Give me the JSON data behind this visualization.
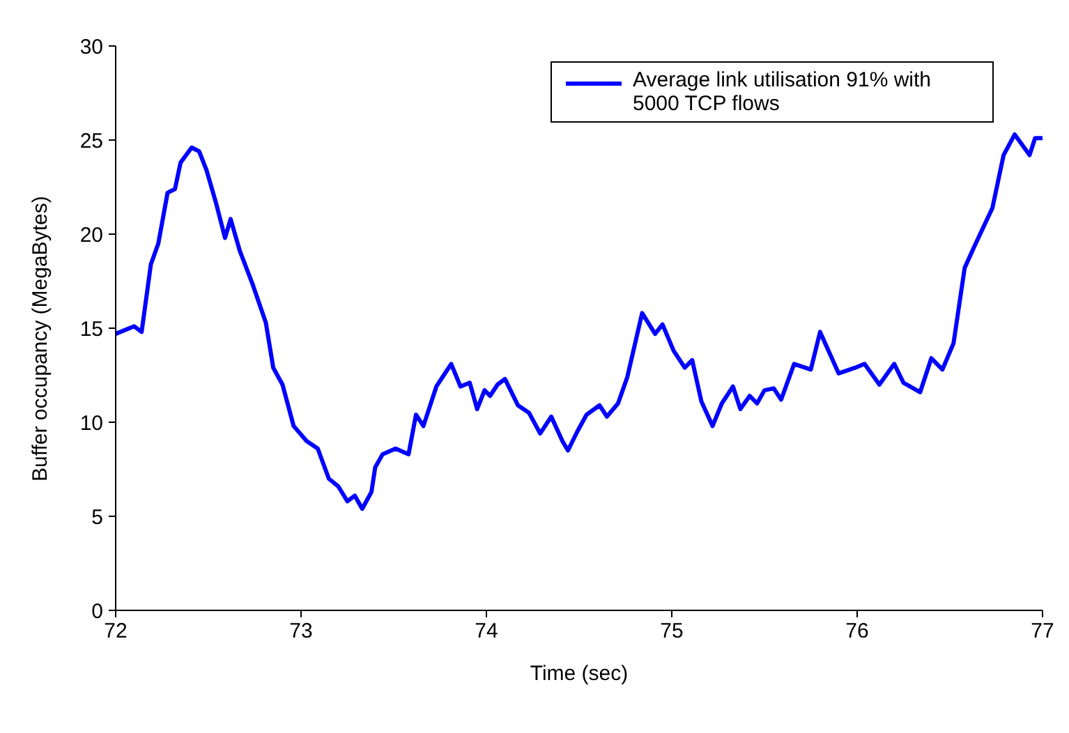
{
  "chart_data": {
    "type": "line",
    "xlabel": "Time (sec)",
    "ylabel": "Buffer occupancy (MegaBytes)",
    "xlim": [
      72,
      77
    ],
    "xticks": [
      72,
      73,
      74,
      75,
      76,
      77
    ],
    "ylim": [
      0,
      30
    ],
    "yticks": [
      0,
      5,
      10,
      15,
      20,
      25,
      30
    ],
    "grid": false,
    "legend": "top right",
    "marker": "none",
    "line_style": "solid",
    "x": [
      72.0,
      72.1,
      72.14,
      72.19,
      72.23,
      72.28,
      72.32,
      72.35,
      72.41,
      72.45,
      72.49,
      72.54,
      72.59,
      72.62,
      72.67,
      72.74,
      72.81,
      72.85,
      72.9,
      72.96,
      73.03,
      73.09,
      73.15,
      73.2,
      73.25,
      73.29,
      73.33,
      73.38,
      73.4,
      73.44,
      73.51,
      73.58,
      73.62,
      73.66,
      73.73,
      73.77,
      73.81,
      73.86,
      73.91,
      73.95,
      73.99,
      74.02,
      74.06,
      74.1,
      74.17,
      74.23,
      74.29,
      74.35,
      74.41,
      74.44,
      74.49,
      74.54,
      74.61,
      74.65,
      74.71,
      74.76,
      74.84,
      74.91,
      74.95,
      75.01,
      75.07,
      75.11,
      75.16,
      75.22,
      75.27,
      75.33,
      75.37,
      75.42,
      75.46,
      75.5,
      75.55,
      75.59,
      75.66,
      75.75,
      75.8,
      75.9,
      75.99,
      76.04,
      76.12,
      76.2,
      76.25,
      76.34,
      76.4,
      76.46,
      76.52,
      76.58,
      76.63,
      76.73,
      76.79,
      76.85,
      76.93,
      76.96,
      77.0
    ],
    "series": [
      {
        "name": "Average link utilisation 91% with 5000 TCP flows",
        "color": "#0000ff",
        "values": [
          14.7,
          15.1,
          14.8,
          18.4,
          19.5,
          22.2,
          22.4,
          23.8,
          24.6,
          24.4,
          23.4,
          21.7,
          19.8,
          20.8,
          19.1,
          17.3,
          15.3,
          12.9,
          12.0,
          9.8,
          9.0,
          8.6,
          7.0,
          6.6,
          5.8,
          6.1,
          5.4,
          6.3,
          7.6,
          8.3,
          8.6,
          8.3,
          10.4,
          9.8,
          11.9,
          12.5,
          13.1,
          11.9,
          12.1,
          10.7,
          11.7,
          11.4,
          12.0,
          12.3,
          10.9,
          10.5,
          9.4,
          10.3,
          9.0,
          8.5,
          9.5,
          10.4,
          10.9,
          10.3,
          11.0,
          12.4,
          15.8,
          14.7,
          15.2,
          13.8,
          12.9,
          13.3,
          11.1,
          9.8,
          11.0,
          11.9,
          10.7,
          11.4,
          11.0,
          11.7,
          11.8,
          11.2,
          13.1,
          12.8,
          14.8,
          12.6,
          12.9,
          13.1,
          12.0,
          13.1,
          12.1,
          11.6,
          13.4,
          12.8,
          14.2,
          18.2,
          19.3,
          21.4,
          24.2,
          25.3,
          24.2,
          25.1,
          25.1
        ]
      }
    ]
  }
}
